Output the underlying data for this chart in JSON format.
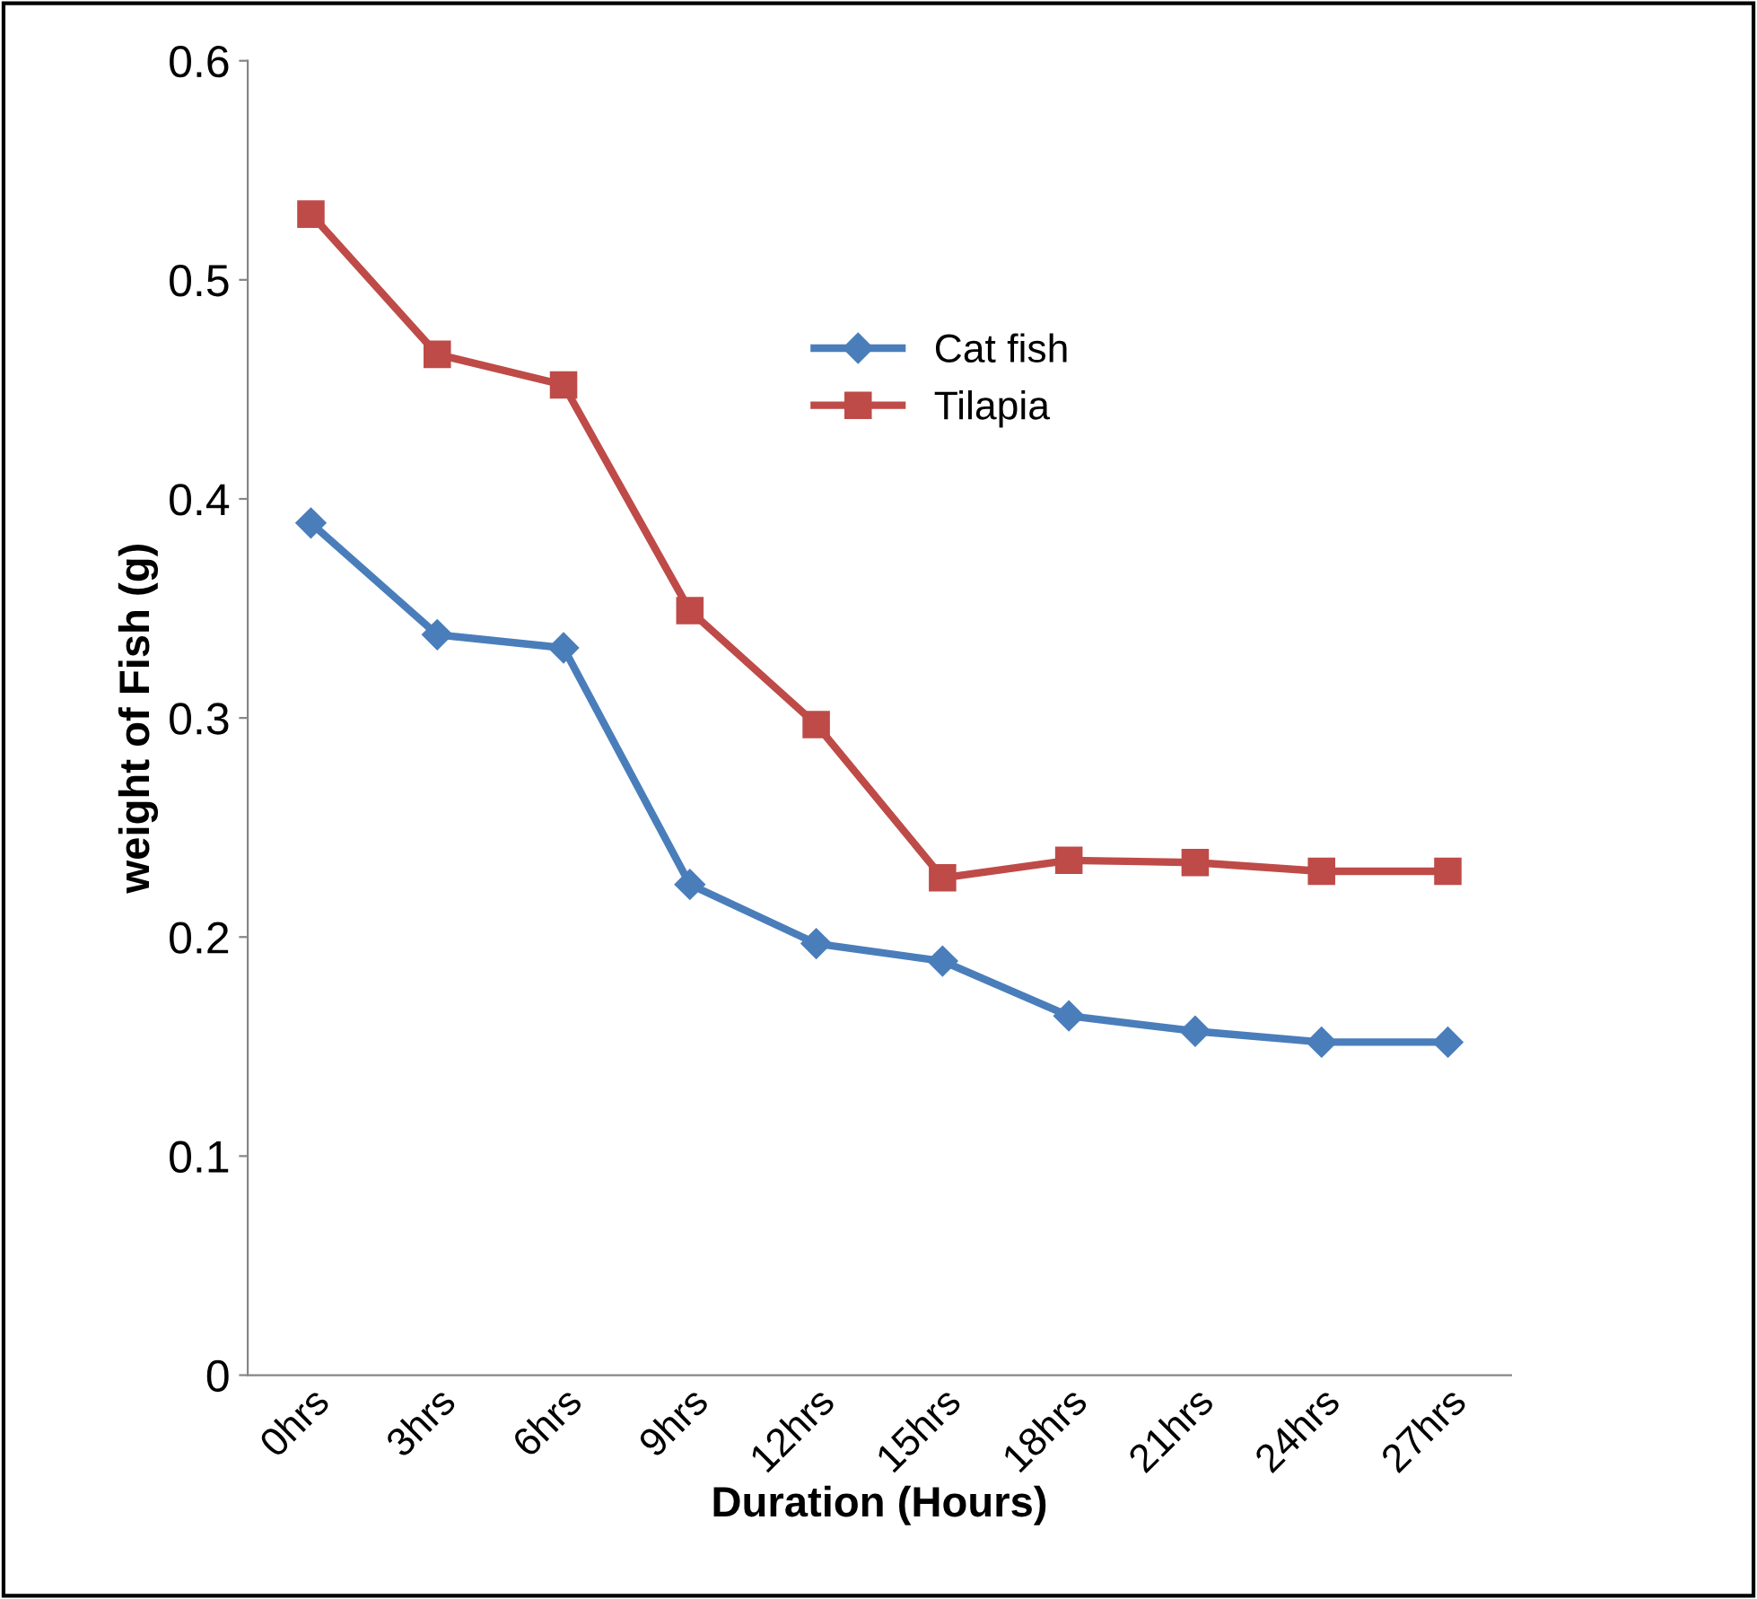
{
  "chart_data": {
    "type": "line",
    "xlabel": "Duration (Hours)",
    "ylabel": "weight of Fish (g)",
    "categories": [
      "0hrs",
      "3hrs",
      "6hrs",
      "9hrs",
      "12hrs",
      "15hrs",
      "18hrs",
      "21hrs",
      "24hrs",
      "27hrs"
    ],
    "series": [
      {
        "name": "Cat fish",
        "color": "#4a7ebb",
        "marker": "diamond",
        "values": [
          0.389,
          0.338,
          0.332,
          0.224,
          0.197,
          0.189,
          0.164,
          0.157,
          0.152,
          0.152
        ]
      },
      {
        "name": "Tilapia",
        "color": "#be4b48",
        "marker": "square",
        "values": [
          0.53,
          0.466,
          0.452,
          0.349,
          0.297,
          0.227,
          0.235,
          0.234,
          0.23,
          0.23
        ]
      }
    ],
    "ylim": [
      0,
      0.6
    ],
    "yticks": [
      {
        "value": 0,
        "label": "0"
      },
      0.1,
      0.2,
      0.3,
      0.4,
      0.5,
      0.6
    ],
    "grid": false,
    "legend": "top",
    "line_style": "solid"
  }
}
